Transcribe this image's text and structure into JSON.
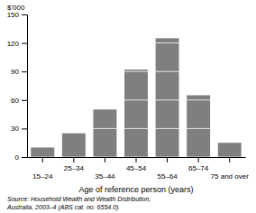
{
  "chart_data": {
    "type": "bar",
    "ylabel": "$'000",
    "xlabel": "Age of reference person (years)",
    "annotations": [
      "Source: Household Wealth and Wealth Distribution,\nAustralia, 2003–4 (ABS cat. no. 6554.0)."
    ],
    "categories": [
      "15–24",
      "25–34",
      "35–44",
      "45–54",
      "55–64",
      "65–74",
      "75 and over"
    ],
    "values": [
      10,
      25,
      50,
      92,
      125,
      65,
      15
    ],
    "color": "#7f7f7f",
    "ylim": [
      0,
      150
    ],
    "yticks": [
      0,
      30,
      60,
      90,
      120,
      150
    ],
    "grid": true
  }
}
